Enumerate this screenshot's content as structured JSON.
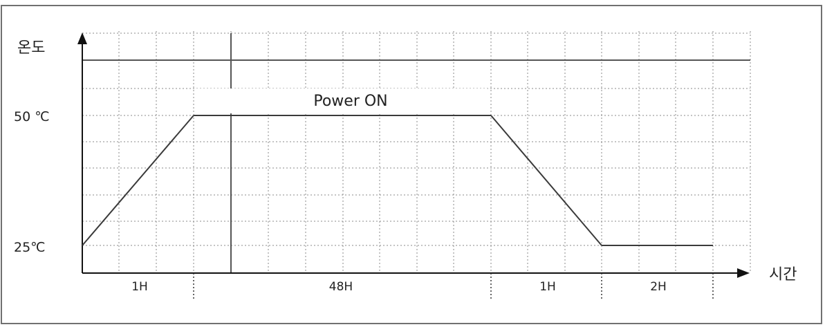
{
  "chart_data": {
    "type": "line",
    "ylabel": "온도",
    "xlabel": "시간",
    "y_ticks": [
      {
        "label": "50 ℃",
        "value": 50
      },
      {
        "label": "25℃",
        "value": 25
      }
    ],
    "segments": [
      {
        "label": "1H",
        "hours": 1
      },
      {
        "label": "48H",
        "hours": 48
      },
      {
        "label": "1H",
        "hours": 1
      },
      {
        "label": "2H",
        "hours": 2
      }
    ],
    "profile_temps": [
      25,
      50,
      50,
      25,
      25
    ],
    "annotation": "Power ON",
    "grid": true,
    "line_color": "#3a3a3a"
  }
}
